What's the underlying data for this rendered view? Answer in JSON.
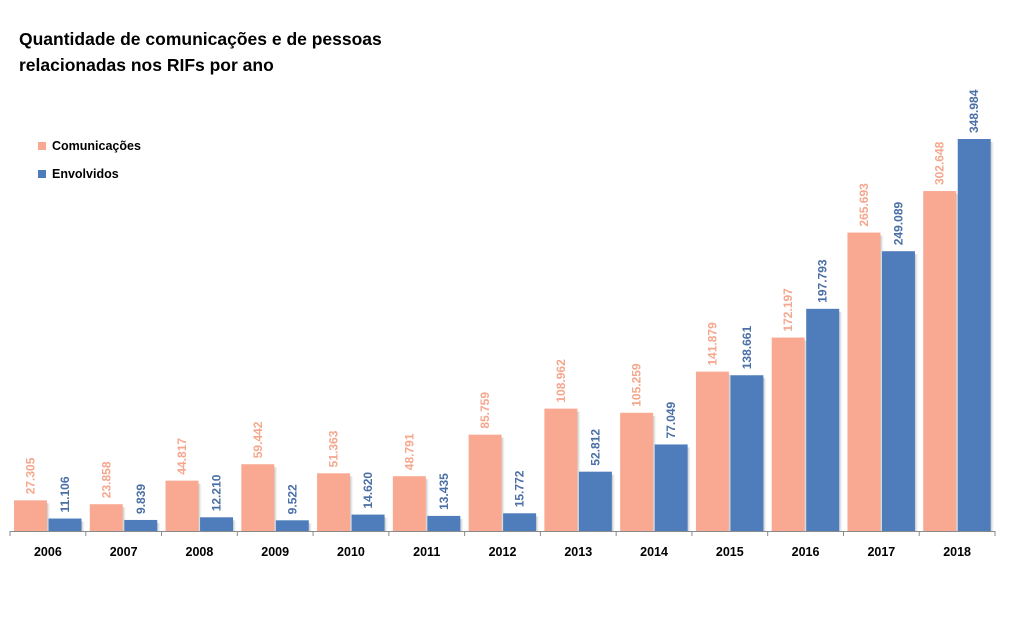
{
  "chart_data": {
    "type": "bar",
    "title_lines": [
      "Quantidade  de comunicações e de pessoas",
      "relacionadas  nos RIFs por ano"
    ],
    "categories": [
      "2006",
      "2007",
      "2008",
      "2009",
      "2010",
      "2011",
      "2012",
      "2013",
      "2014",
      "2015",
      "2016",
      "2017",
      "2018"
    ],
    "series": [
      {
        "name": "Comunicações",
        "color": "#F9A991",
        "label_color": "#F5A78E",
        "values": [
          27305,
          23858,
          44817,
          59442,
          51363,
          48791,
          85759,
          108962,
          105259,
          141879,
          172197,
          265693,
          302648
        ],
        "labels": [
          "27.305",
          "23.858",
          "44.817",
          "59.442",
          "51.363",
          "48.791",
          "85.759",
          "108.962",
          "105.259",
          "141.879",
          "172.197",
          "265.693",
          "302.648"
        ]
      },
      {
        "name": "Envolvidos",
        "color": "#4F7DBC",
        "label_color": "#4A6FA5",
        "values": [
          11106,
          9839,
          12210,
          9522,
          14620,
          13435,
          15772,
          52812,
          77049,
          138661,
          197793,
          249089,
          348984
        ],
        "labels": [
          "11.106",
          "9.839",
          "12.210",
          "9.522",
          "14.620",
          "13.435",
          "15.772",
          "52.812",
          "77.049",
          "138.661",
          "197.793",
          "249.089",
          "348.984"
        ]
      }
    ],
    "xlabel": "",
    "ylabel": "",
    "ylim": [
      0,
      360000
    ],
    "grid": false,
    "legend_position": "top-left"
  }
}
